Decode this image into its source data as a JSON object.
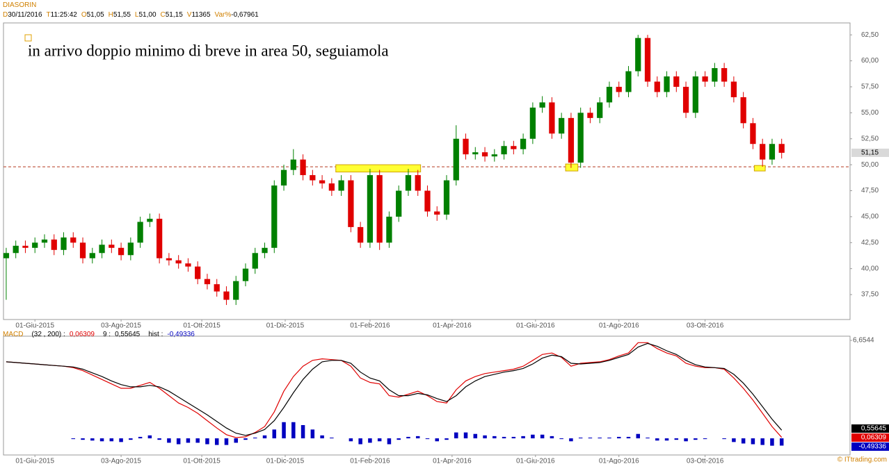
{
  "header": {
    "symbol": "DIASORIN",
    "fields": [
      {
        "label": "D",
        "value": "30/11/2016"
      },
      {
        "label": "T",
        "value": "11:25:42"
      },
      {
        "label": "O",
        "value": "51,05"
      },
      {
        "label": "H",
        "value": "51,55"
      },
      {
        "label": "L",
        "value": "51,00"
      },
      {
        "label": "C",
        "value": "51,15"
      },
      {
        "label": "V",
        "value": "11365"
      },
      {
        "label": "Var%",
        "value": "-0,67961"
      }
    ],
    "credit": "© ITtrading.com"
  },
  "chart_data": [
    {
      "type": "candlestick",
      "annotation": "in arrivo doppio minimo di breve in area 50, seguiamola",
      "up_color": "#008000",
      "down_color": "#e00000",
      "x": [
        "2015-05-11",
        "2015-05-18",
        "2015-05-25",
        "2015-06-01",
        "2015-06-08",
        "2015-06-15",
        "2015-06-22",
        "2015-06-29",
        "2015-07-06",
        "2015-07-13",
        "2015-07-20",
        "2015-07-27",
        "2015-08-03",
        "2015-08-10",
        "2015-08-17",
        "2015-08-24",
        "2015-08-31",
        "2015-09-07",
        "2015-09-14",
        "2015-09-21",
        "2015-09-28",
        "2015-10-05",
        "2015-10-12",
        "2015-10-19",
        "2015-10-26",
        "2015-11-02",
        "2015-11-09",
        "2015-11-16",
        "2015-11-23",
        "2015-11-30",
        "2015-12-07",
        "2015-12-14",
        "2015-12-21",
        "2015-12-28",
        "2016-01-04",
        "2016-01-11",
        "2016-01-18",
        "2016-01-25",
        "2016-02-01",
        "2016-02-08",
        "2016-02-15",
        "2016-02-22",
        "2016-02-29",
        "2016-03-07",
        "2016-03-14",
        "2016-03-21",
        "2016-03-28",
        "2016-04-04",
        "2016-04-11",
        "2016-04-18",
        "2016-04-25",
        "2016-05-02",
        "2016-05-09",
        "2016-05-16",
        "2016-05-23",
        "2016-05-30",
        "2016-06-06",
        "2016-06-13",
        "2016-06-20",
        "2016-06-27",
        "2016-07-04",
        "2016-07-11",
        "2016-07-18",
        "2016-07-25",
        "2016-08-01",
        "2016-08-08",
        "2016-08-15",
        "2016-08-22",
        "2016-08-29",
        "2016-09-05",
        "2016-09-12",
        "2016-09-19",
        "2016-09-26",
        "2016-10-03",
        "2016-10-10",
        "2016-10-17",
        "2016-10-24",
        "2016-10-31",
        "2016-11-07",
        "2016-11-14",
        "2016-11-21",
        "2016-11-28"
      ],
      "open": [
        41.0,
        41.5,
        42.2,
        42.0,
        42.5,
        42.8,
        41.8,
        43.0,
        42.5,
        41.0,
        41.5,
        42.3,
        42.0,
        41.3,
        42.5,
        44.5,
        44.8,
        41.0,
        40.8,
        40.5,
        40.2,
        39.0,
        38.5,
        37.8,
        37.0,
        38.8,
        40.0,
        41.5,
        42.0,
        48.0,
        49.5,
        50.5,
        49.0,
        48.5,
        48.2,
        47.5,
        48.5,
        44.0,
        42.5,
        49.0,
        42.5,
        45.0,
        47.5,
        49.0,
        47.5,
        45.5,
        45.2,
        48.5,
        52.5,
        51.0,
        51.2,
        50.8,
        51.0,
        51.8,
        51.5,
        52.5,
        55.5,
        56.0,
        53.0,
        54.5,
        50.2,
        55.0,
        54.5,
        56.0,
        57.5,
        57.0,
        59.0,
        62.2,
        58.0,
        57.0,
        58.5,
        57.5,
        55.0,
        58.5,
        58.0,
        59.3,
        58.0,
        56.5,
        54.0,
        52.0,
        50.5,
        52.0
      ],
      "high": [
        42.0,
        42.7,
        42.7,
        43.0,
        43.3,
        43.3,
        43.5,
        43.5,
        43.0,
        42.0,
        42.8,
        42.8,
        42.5,
        43.0,
        45.0,
        45.3,
        45.3,
        41.5,
        41.3,
        41.0,
        40.7,
        39.5,
        39.0,
        38.3,
        39.3,
        40.5,
        42.0,
        42.5,
        48.5,
        50.0,
        51.5,
        51.0,
        49.5,
        49.0,
        48.7,
        49.0,
        49.0,
        44.5,
        49.6,
        49.5,
        45.5,
        48.0,
        49.6,
        49.5,
        48.0,
        46.0,
        49.0,
        53.8,
        53.0,
        51.7,
        51.7,
        51.5,
        52.3,
        52.3,
        53.0,
        56.0,
        56.6,
        56.5,
        55.0,
        55.0,
        55.5,
        55.5,
        56.5,
        58.0,
        58.0,
        59.5,
        62.5,
        62.5,
        58.5,
        59.0,
        59.0,
        58.0,
        59.0,
        59.0,
        59.8,
        59.8,
        58.5,
        57.0,
        54.5,
        52.5,
        52.5,
        52.5
      ],
      "low": [
        37.0,
        41.0,
        41.5,
        41.5,
        42.0,
        41.3,
        41.3,
        42.0,
        40.5,
        40.5,
        41.0,
        41.5,
        40.8,
        40.8,
        42.0,
        44.0,
        40.5,
        40.3,
        40.0,
        39.7,
        38.5,
        38.0,
        37.3,
        36.5,
        36.5,
        38.3,
        39.5,
        41.0,
        41.5,
        47.5,
        49.0,
        48.5,
        48.0,
        47.7,
        47.0,
        47.0,
        43.5,
        42.0,
        42.0,
        41.8,
        42.0,
        44.5,
        47.0,
        47.0,
        45.0,
        44.6,
        44.7,
        48.0,
        50.5,
        50.5,
        50.3,
        50.3,
        50.5,
        51.0,
        51.0,
        52.0,
        55.0,
        52.5,
        52.5,
        49.7,
        49.7,
        54.0,
        54.0,
        55.5,
        56.5,
        56.5,
        58.5,
        57.5,
        56.5,
        56.5,
        57.0,
        54.5,
        54.5,
        57.5,
        57.5,
        57.5,
        56.0,
        53.5,
        51.5,
        49.8,
        50.0,
        50.6
      ],
      "close": [
        41.5,
        42.2,
        42.0,
        42.5,
        42.8,
        41.8,
        43.0,
        42.5,
        41.0,
        41.5,
        42.3,
        42.0,
        41.3,
        42.5,
        44.5,
        44.8,
        41.0,
        40.8,
        40.5,
        40.2,
        39.0,
        38.5,
        37.8,
        37.0,
        38.8,
        40.0,
        41.5,
        42.0,
        48.0,
        49.5,
        50.5,
        49.0,
        48.5,
        48.2,
        47.5,
        48.5,
        44.0,
        42.5,
        49.0,
        42.5,
        45.0,
        47.5,
        49.0,
        47.5,
        45.5,
        45.2,
        48.5,
        52.5,
        51.0,
        51.2,
        50.8,
        51.0,
        51.8,
        51.5,
        52.5,
        55.5,
        56.0,
        53.0,
        54.5,
        50.2,
        55.0,
        54.5,
        56.0,
        57.5,
        57.0,
        59.0,
        62.2,
        58.0,
        57.0,
        58.5,
        57.5,
        55.0,
        58.5,
        58.0,
        59.3,
        58.0,
        56.5,
        54.0,
        52.0,
        50.5,
        52.0,
        51.15
      ],
      "xlim": [
        "2015-05-09",
        "2017-01-17"
      ],
      "xticks": [
        {
          "value": "2015-06-01",
          "label": "01-Giu-2015"
        },
        {
          "value": "2015-08-03",
          "label": "03-Ago-2015"
        },
        {
          "value": "2015-10-01",
          "label": "01-Ott-2015"
        },
        {
          "value": "2015-12-01",
          "label": "01-Dic-2015"
        },
        {
          "value": "2016-02-01",
          "label": "01-Feb-2016"
        },
        {
          "value": "2016-04-01",
          "label": "01-Apr-2016"
        },
        {
          "value": "2016-06-01",
          "label": "01-Giu-2016"
        },
        {
          "value": "2016-08-01",
          "label": "01-Ago-2016"
        },
        {
          "value": "2016-10-03",
          "label": "03-Ott-2016"
        }
      ],
      "ylim": [
        35.1,
        63.65
      ],
      "yticks": [
        {
          "value": 62.5,
          "label": "62,50"
        },
        {
          "value": 60,
          "label": "60,00"
        },
        {
          "value": 57.5,
          "label": "57,50"
        },
        {
          "value": 55,
          "label": "55,00"
        },
        {
          "value": 52.5,
          "label": "52,50"
        },
        {
          "value": 50,
          "label": "50,00"
        },
        {
          "value": 47.5,
          "label": "47,50"
        },
        {
          "value": 45,
          "label": "45,00"
        },
        {
          "value": 42.5,
          "label": "42,50"
        },
        {
          "value": 40,
          "label": "40,00"
        },
        {
          "value": 37.5,
          "label": "37,50"
        }
      ],
      "last_price": {
        "value": 51.15,
        "label": "51,15"
      },
      "support_line": {
        "value": 49.8,
        "color": "#b5391f"
      },
      "highlight_boxes": [
        {
          "x": [
            "2016-01-07",
            "2016-03-09"
          ],
          "y": [
            49.3,
            50.0
          ]
        },
        {
          "x": [
            "2016-06-23",
            "2016-07-02"
          ],
          "y": [
            49.4,
            50.07
          ]
        },
        {
          "x": [
            "2016-11-08",
            "2016-11-16"
          ],
          "y": [
            49.4,
            49.93
          ]
        }
      ]
    },
    {
      "type": "macd",
      "title": "MACD",
      "series": [
        {
          "name": "(32 , 200) :",
          "color": "#e00000",
          "last_label": "0,06309",
          "values": [
            5.2,
            5.15,
            5.1,
            5.05,
            5.0,
            4.95,
            4.9,
            4.8,
            4.6,
            4.3,
            4.0,
            3.7,
            3.4,
            3.4,
            3.6,
            3.8,
            3.4,
            2.9,
            2.4,
            2.1,
            1.7,
            1.2,
            0.7,
            0.25,
            0.05,
            0.1,
            0.4,
            0.8,
            1.8,
            3.2,
            4.2,
            4.9,
            5.3,
            5.4,
            5.35,
            5.3,
            4.9,
            4.1,
            3.8,
            3.7,
            2.9,
            2.8,
            3.0,
            3.2,
            2.9,
            2.5,
            2.4,
            3.3,
            3.9,
            4.2,
            4.4,
            4.5,
            4.6,
            4.7,
            4.9,
            5.3,
            5.7,
            5.8,
            5.5,
            4.9,
            5.1,
            5.15,
            5.2,
            5.35,
            5.6,
            5.8,
            6.5,
            6.5,
            6.1,
            5.8,
            5.6,
            5.1,
            4.9,
            4.8,
            4.8,
            4.7,
            4.1,
            3.4,
            2.6,
            1.7,
            0.8,
            0.06309
          ]
        },
        {
          "name": "9 :",
          "color": "#000000",
          "last_label": "0,55645",
          "values": [
            5.2,
            5.15,
            5.1,
            5.05,
            5.0,
            4.95,
            4.9,
            4.85,
            4.7,
            4.45,
            4.2,
            3.9,
            3.65,
            3.5,
            3.5,
            3.6,
            3.5,
            3.2,
            2.8,
            2.4,
            2.0,
            1.6,
            1.15,
            0.7,
            0.35,
            0.2,
            0.35,
            0.6,
            1.2,
            2.1,
            3.1,
            4.0,
            4.7,
            5.2,
            5.3,
            5.3,
            5.1,
            4.5,
            4.1,
            3.9,
            3.3,
            2.9,
            2.9,
            3.05,
            2.95,
            2.7,
            2.5,
            2.9,
            3.5,
            3.9,
            4.2,
            4.35,
            4.5,
            4.6,
            4.75,
            5.05,
            5.45,
            5.65,
            5.55,
            5.1,
            5.05,
            5.1,
            5.15,
            5.3,
            5.5,
            5.7,
            6.2,
            6.45,
            6.25,
            5.95,
            5.7,
            5.3,
            5.0,
            4.85,
            4.8,
            4.75,
            4.35,
            3.75,
            3.0,
            2.15,
            1.3,
            0.55645
          ]
        },
        {
          "name": "hist :",
          "color": "#0000c0",
          "last_label": "-0,49336",
          "values": [
            0,
            0,
            0,
            0,
            0,
            0,
            0,
            -0.05,
            -0.1,
            -0.15,
            -0.2,
            -0.2,
            -0.25,
            -0.1,
            0.1,
            0.2,
            -0.1,
            -0.3,
            -0.4,
            -0.3,
            -0.3,
            -0.4,
            -0.45,
            -0.45,
            -0.3,
            -0.1,
            0.05,
            0.2,
            0.6,
            1.1,
            1.1,
            0.9,
            0.6,
            0.2,
            0.05,
            0,
            -0.2,
            -0.4,
            -0.3,
            -0.2,
            -0.4,
            -0.1,
            0.1,
            0.15,
            -0.05,
            -0.2,
            -0.1,
            0.4,
            0.4,
            0.3,
            0.2,
            0.15,
            0.1,
            0.1,
            0.15,
            0.25,
            0.25,
            0.15,
            -0.05,
            -0.2,
            0.05,
            0.05,
            0.05,
            0.05,
            0.1,
            0.1,
            0.3,
            0.05,
            -0.15,
            -0.15,
            -0.1,
            -0.2,
            -0.1,
            -0.05,
            0,
            -0.05,
            -0.25,
            -0.35,
            -0.4,
            -0.45,
            -0.5,
            -0.49336
          ]
        }
      ],
      "ylim": [
        -1.13,
        6.94
      ],
      "yticks": [
        {
          "value": 6.6544,
          "label": "6,6544"
        }
      ]
    }
  ]
}
